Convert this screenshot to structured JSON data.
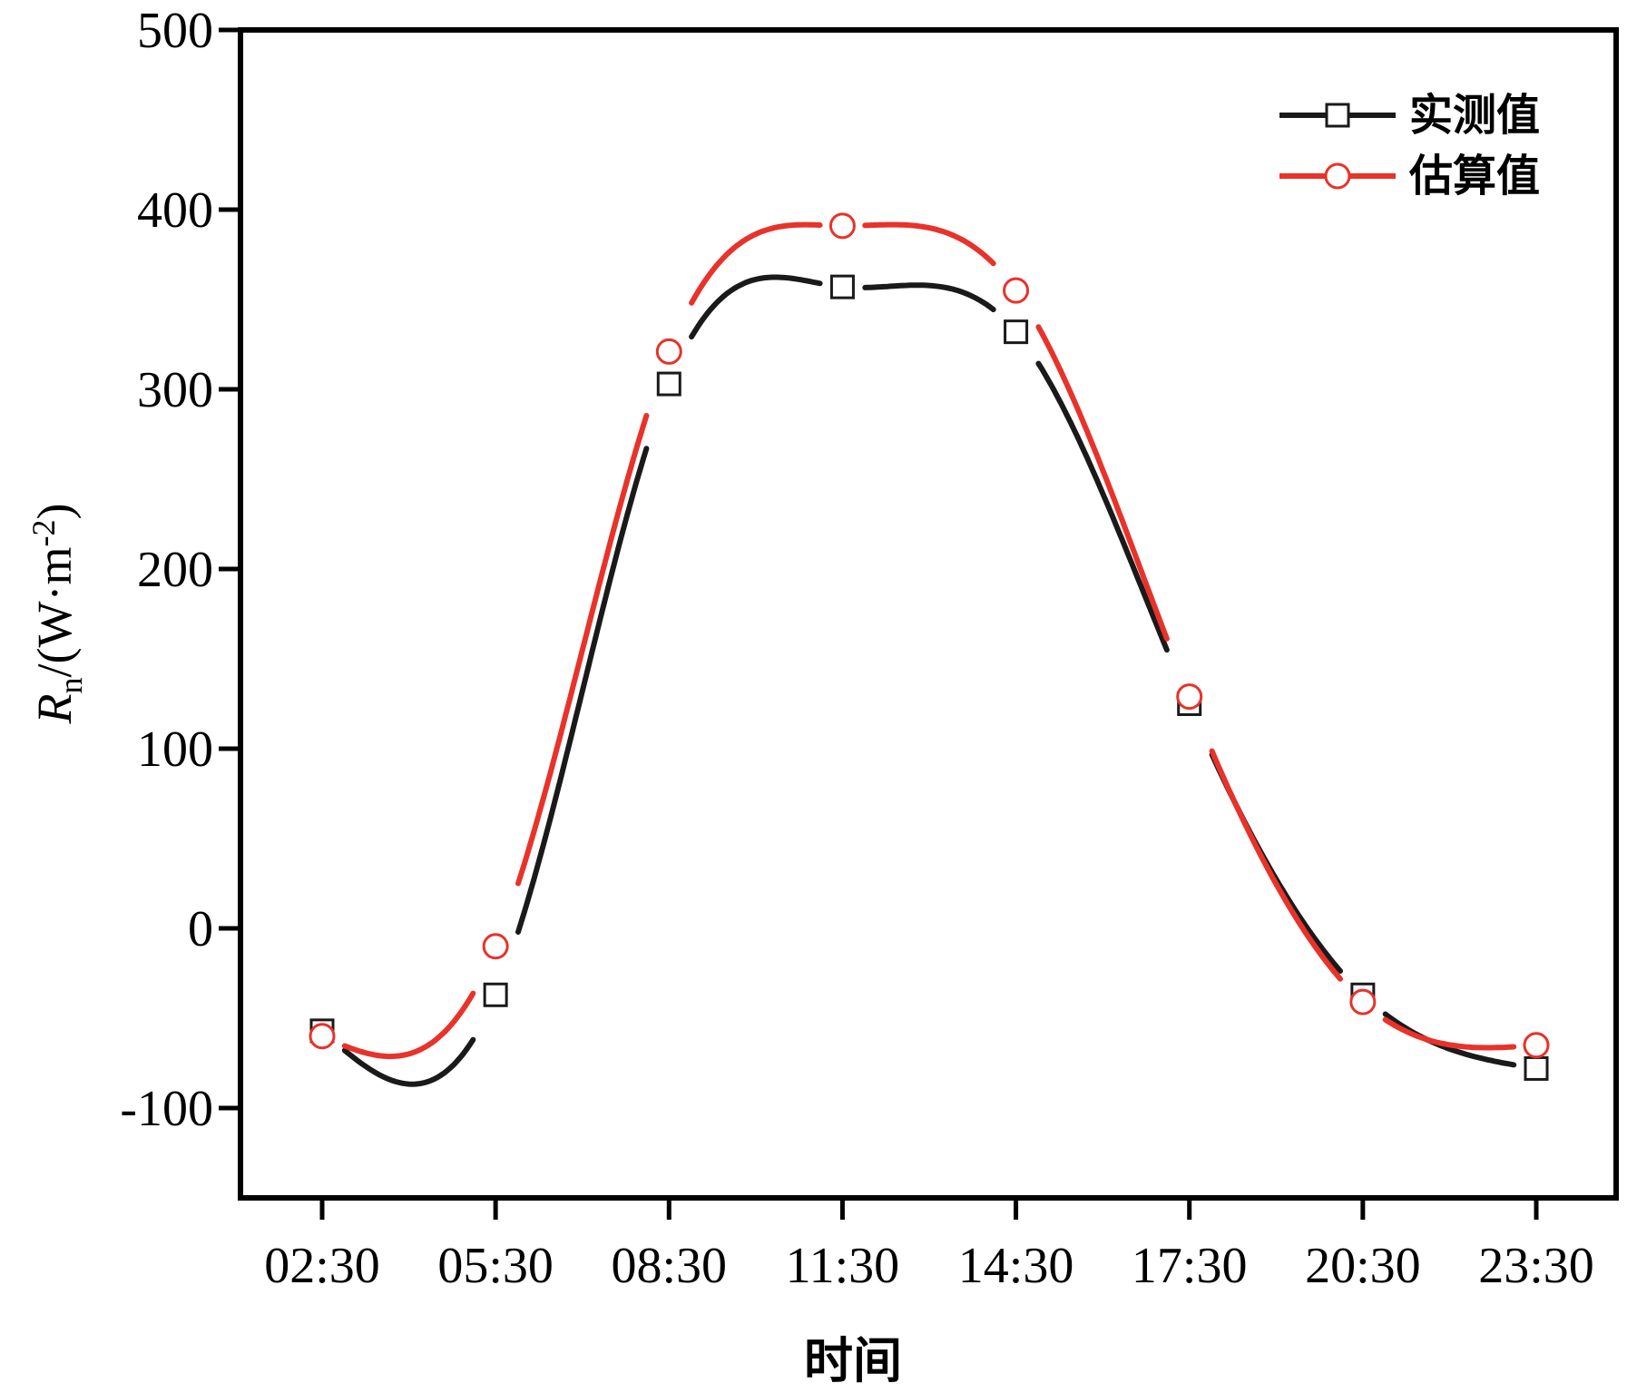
{
  "chart_data": {
    "type": "line",
    "title": "",
    "xlabel": "时间",
    "ylabel": {
      "symbol": "R",
      "subscript": "n",
      "unit_prefix": "/(W·m",
      "superscript": "-2",
      "unit_suffix": ")"
    },
    "categories": [
      "02:30",
      "05:30",
      "08:30",
      "11:30",
      "14:30",
      "17:30",
      "20:30",
      "23:30"
    ],
    "yticks": [
      -100,
      0,
      100,
      200,
      300,
      400,
      500
    ],
    "ylim": [
      -150,
      500
    ],
    "grid": false,
    "legend_position": "top-right",
    "series": [
      {
        "name": "实测值",
        "color": "#1a1a1a",
        "marker": "square",
        "values": [
          -57,
          -37,
          303,
          357,
          332,
          125,
          -37,
          -78
        ]
      },
      {
        "name": "估算值",
        "color": "#e8322a",
        "marker": "circle",
        "values": [
          -60,
          -10,
          321,
          391,
          355,
          129,
          -41,
          -65
        ]
      }
    ]
  }
}
